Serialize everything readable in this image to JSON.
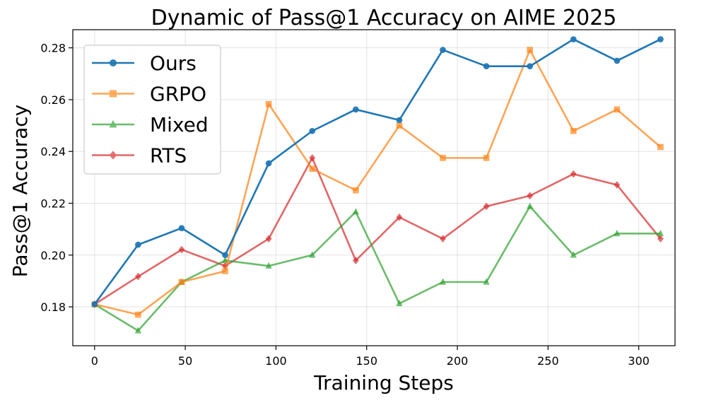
{
  "chart_data": {
    "type": "line",
    "title": "Dynamic of Pass@1 Accuracy on AIME 2025",
    "xlabel": "Training Steps",
    "ylabel": "Pass@1 Accuracy",
    "xlim": [
      -12,
      320
    ],
    "ylim": [
      0.165,
      0.287
    ],
    "x_ticks": [
      0,
      50,
      100,
      150,
      200,
      250,
      300
    ],
    "y_ticks": [
      0.18,
      0.2,
      0.22,
      0.24,
      0.26,
      0.28
    ],
    "x_tick_labels": [
      "0",
      "50",
      "100",
      "150",
      "200",
      "250",
      "300"
    ],
    "y_tick_labels": [
      "0.18",
      "0.20",
      "0.22",
      "0.24",
      "0.26",
      "0.28"
    ],
    "grid": true,
    "legend_position": "top-left",
    "x": [
      0,
      24,
      48,
      72,
      96,
      120,
      144,
      168,
      192,
      216,
      240,
      264,
      288,
      312
    ],
    "series": [
      {
        "name": "Ours",
        "color": "#1f77b4",
        "marker": "circle",
        "values": [
          0.181,
          0.204,
          0.2104,
          0.2,
          0.2354,
          0.2479,
          0.2562,
          0.2521,
          0.2792,
          0.2729,
          0.2729,
          0.2833,
          0.275,
          0.2833
        ]
      },
      {
        "name": "GRPO",
        "color": "#ff7f0e",
        "marker": "square",
        "values": [
          0.181,
          0.177,
          0.1896,
          0.1938,
          0.2583,
          0.2333,
          0.225,
          0.25,
          0.2375,
          0.2375,
          0.2792,
          0.2479,
          0.2562,
          0.2417
        ]
      },
      {
        "name": "Mixed",
        "color": "#2ca02c",
        "marker": "triangle",
        "values": [
          0.181,
          0.1708,
          0.1896,
          0.1979,
          0.1958,
          0.2,
          0.2167,
          0.1813,
          0.1896,
          0.1896,
          0.2188,
          0.2,
          0.2083,
          0.2083
        ]
      },
      {
        "name": "RTS",
        "color": "#d62728",
        "marker": "diamond",
        "values": [
          0.181,
          0.1917,
          0.2021,
          0.1958,
          0.2063,
          0.2375,
          0.1979,
          0.2146,
          0.2063,
          0.2188,
          0.2229,
          0.2313,
          0.2271,
          0.2063
        ]
      }
    ]
  }
}
